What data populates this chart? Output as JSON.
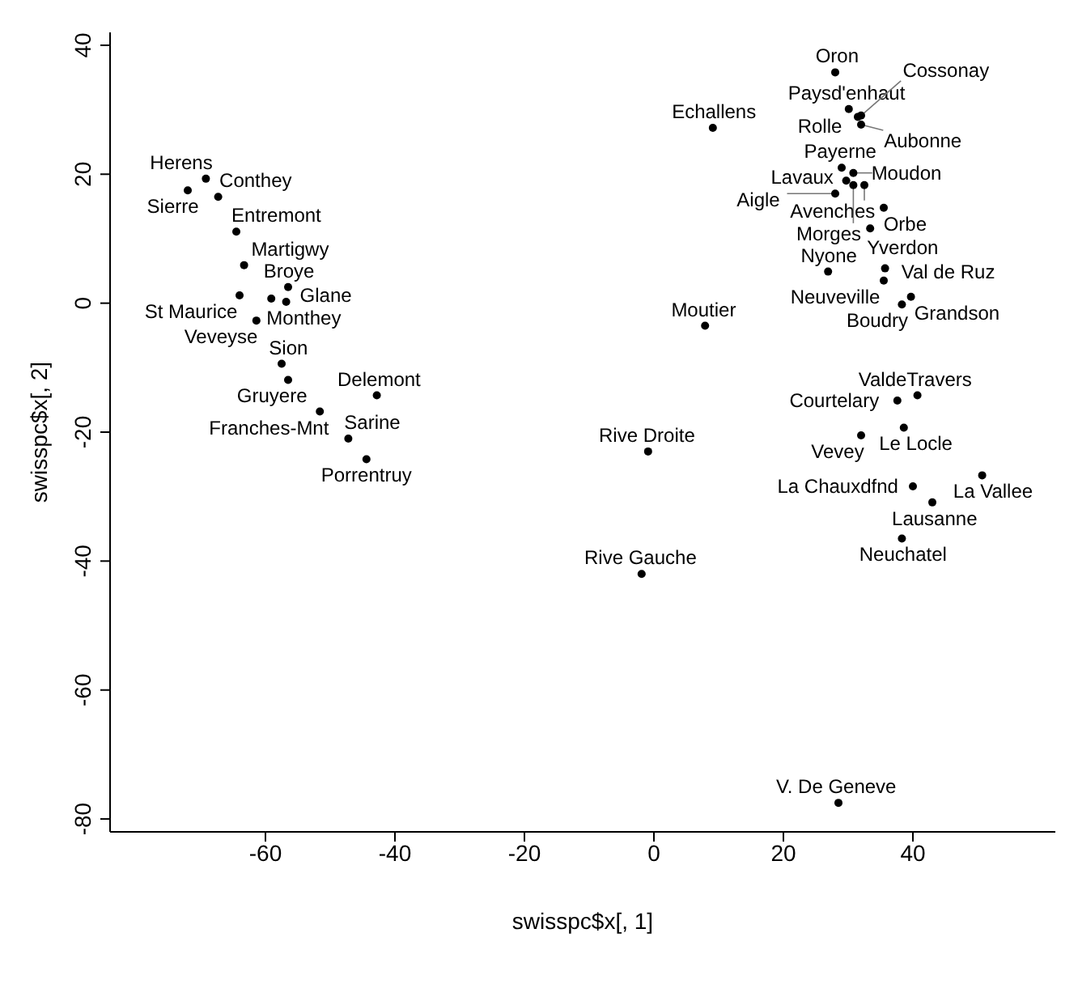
{
  "chart_data": {
    "type": "scatter",
    "xlabel": "swisspc$x[, 1]",
    "ylabel": "swisspc$x[, 2]",
    "xlim": [
      -84,
      62
    ],
    "ylim": [
      -82,
      42
    ],
    "xticks": [
      -60,
      -40,
      -20,
      0,
      20,
      40
    ],
    "yticks": [
      -80,
      -60,
      -40,
      -20,
      0,
      20,
      40
    ],
    "marker": "circle",
    "series": [
      {
        "color": "#000000",
        "x": [
          -69.2,
          -67.3,
          -72,
          -64.5,
          -63.3,
          -56.5,
          -64,
          -59.1,
          -56.8,
          -61.4,
          -57.5,
          -56.5,
          -42.8,
          -51.6,
          -47.2,
          -44.4,
          7.9,
          -0.9,
          -1.9,
          28.5,
          28.0,
          9.1,
          30.1,
          32.0,
          32.0,
          31.5,
          29.0,
          30.8,
          32.5,
          30.8,
          28.0,
          29.7,
          35.5,
          33.4,
          26.9,
          35.7,
          35.5,
          39.7,
          38.3,
          40.7,
          37.6,
          38.6,
          32.0,
          40.0,
          50.7,
          43.0,
          38.3
        ],
        "values": [
          19.3,
          16.5,
          17.5,
          11.1,
          5.9,
          2.5,
          1.2,
          0.7,
          0.2,
          -2.7,
          -9.4,
          -11.9,
          -14.3,
          -16.8,
          -21.0,
          -24.2,
          -3.5,
          -23.0,
          -42.0,
          -77.5,
          35.8,
          27.2,
          30.1,
          27.7,
          29.1,
          28.9,
          21.0,
          20.2,
          18.3,
          18.3,
          17.0,
          19.0,
          14.8,
          11.6,
          4.9,
          5.4,
          3.5,
          1.0,
          -0.2,
          -14.3,
          -15.1,
          -19.3,
          -20.5,
          -28.4,
          -26.7,
          -30.9,
          -36.5
        ],
        "value_labels": [
          "Herens",
          "Conthey",
          "Sierre",
          "Entremont",
          "Martigwy",
          "Broye",
          "St Maurice",
          "Monthey",
          "Glane",
          "Veveyse",
          "Sion",
          "Gruyere",
          "Delemont",
          "Franches-Mnt",
          "Sarine",
          "Porrentruy",
          "Moutier",
          "Rive Droite",
          "Rive Gauche",
          "V. De Geneve",
          "Oron",
          "Echallens",
          "Paysd'enhaut",
          "Aubonne",
          "Cossonay",
          "Rolle",
          "Payerne",
          "Moudon",
          "Avenches",
          "Morges",
          "Aigle",
          "Lavaux",
          "Orbe",
          "Yverdon",
          "Nyone",
          "Val de Ruz",
          "Neuveville",
          "Grandson",
          "Boudry",
          "ValdeTravers",
          "Courtelary",
          "Le Locle",
          "Vevey",
          "La Chauxdfnd",
          "La Vallee",
          "Lausanne",
          "Neuchatel"
        ]
      }
    ]
  }
}
